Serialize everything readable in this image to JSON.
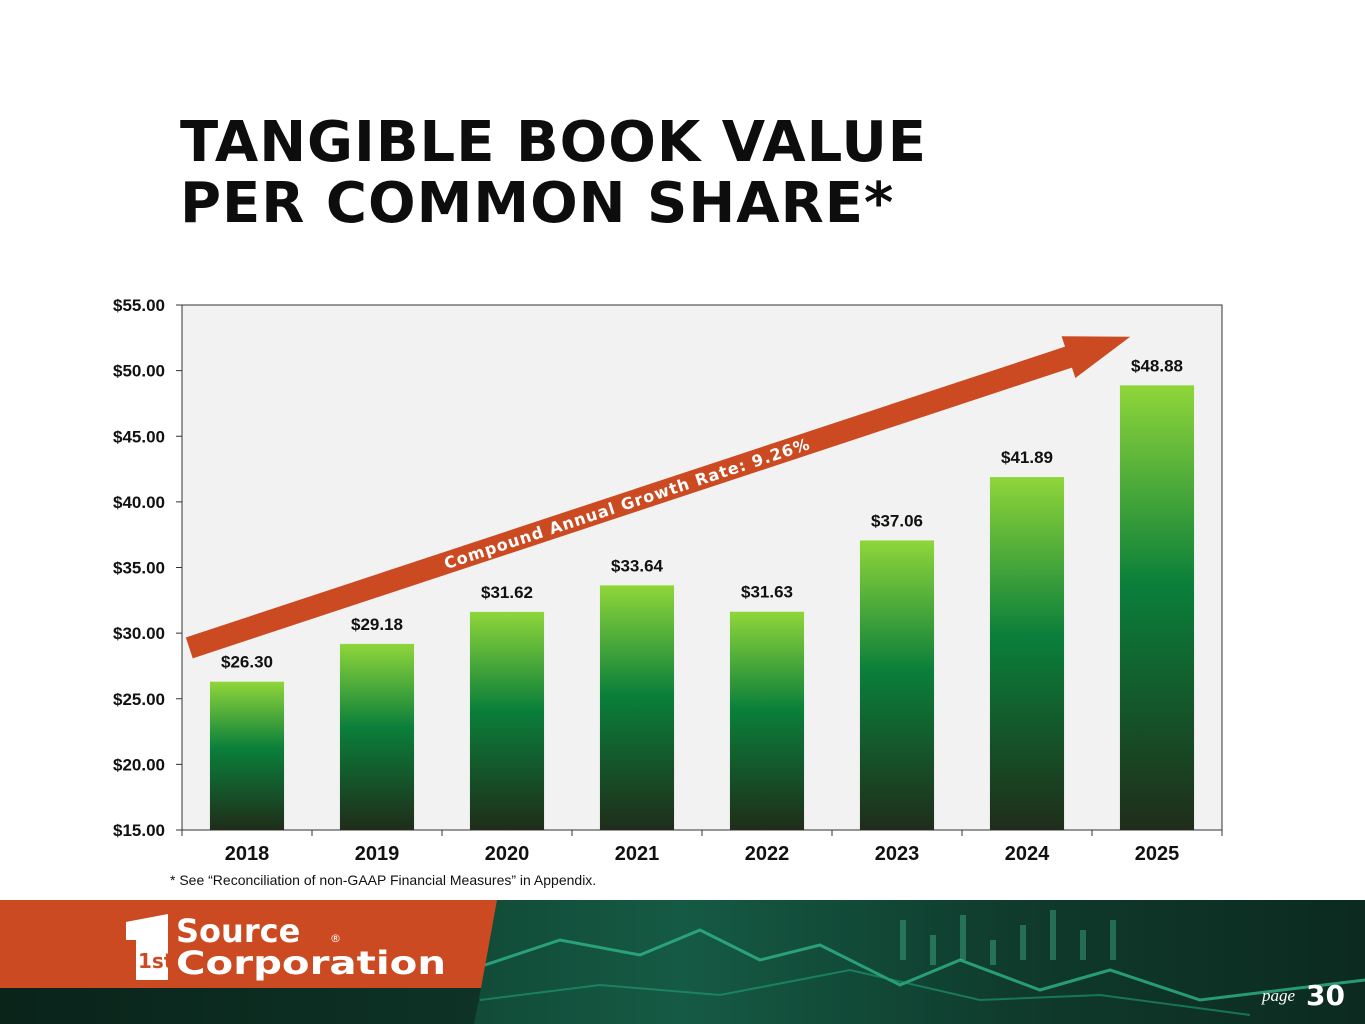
{
  "title": {
    "line1": "TANGIBLE BOOK VALUE",
    "line2": "PER COMMON SHARE*"
  },
  "chart_data": {
    "type": "bar",
    "categories": [
      "2018",
      "2019",
      "2020",
      "2021",
      "2022",
      "2023",
      "2024",
      "2025"
    ],
    "values": [
      26.3,
      29.18,
      31.62,
      33.64,
      31.63,
      37.06,
      41.89,
      48.88
    ],
    "data_labels": [
      "$26.30",
      "$29.18",
      "$31.62",
      "$33.64",
      "$31.63",
      "$37.06",
      "$41.89",
      "$48.88"
    ],
    "ylim": [
      15,
      55
    ],
    "yticks": [
      15,
      20,
      25,
      30,
      35,
      40,
      45,
      50,
      55
    ],
    "ytick_labels": [
      "$15.00",
      "$20.00",
      "$25.00",
      "$30.00",
      "$35.00",
      "$40.00",
      "$45.00",
      "$50.00",
      "$55.00"
    ],
    "xlabel": "",
    "ylabel": "",
    "grid": false,
    "annotation": "Compound Annual Growth Rate: 9.26%",
    "colors": {
      "bar_top": "#8fd63a",
      "bar_mid": "#0a7f3a",
      "bar_bottom": "#1f2d1a",
      "plot_bg": "#f2f2f2",
      "arrow": "#cc4a22"
    }
  },
  "footnote": "* See “Reconciliation of non-GAAP Financial Measures” in Appendix.",
  "logo": {
    "line1": "Source",
    "line2": "Corporation",
    "mark": "1st",
    "reg": "®"
  },
  "page": {
    "label": "page",
    "number": "30"
  },
  "colors": {
    "brand_orange": "#cc4a22",
    "footer_dark": "#0f3528",
    "footer_teal": "#1b8f6e"
  }
}
